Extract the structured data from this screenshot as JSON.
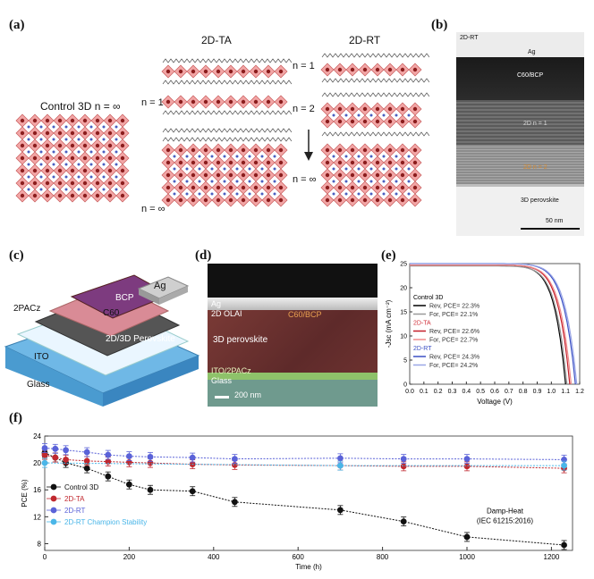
{
  "panel_labels": {
    "a": "(a)",
    "b": "(b)",
    "c": "(c)",
    "d": "(d)",
    "e": "(e)",
    "f": "(f)"
  },
  "panel_a": {
    "control_title": "Control 3D n = ∞",
    "ta_title": "2D-TA",
    "rt_title": "2D-RT",
    "ta_n1": "n = 1",
    "ta_ninf": "n = ∞",
    "rt_n1": "n = 1",
    "rt_n2": "n = 2",
    "rt_ninf": "n = ∞"
  },
  "panel_b": {
    "corner": "2D-RT",
    "ag": "Ag",
    "c60bcp": "C60/BCP",
    "n1": "2D n = 1",
    "n2": "2D n = 2",
    "perov": "3D perovskite",
    "scale": "50 nm"
  },
  "panel_c": {
    "ag": "Ag",
    "bcp": "BCP",
    "c60": "C60",
    "twopacz": "2PACz",
    "perov": "2D/3D Perovskite",
    "ito": "ITO",
    "glass": "Glass"
  },
  "panel_d": {
    "ag": "Ag",
    "oi": "2D OLAI",
    "c60bcp": "C60/BCP",
    "perov": "3D perovskite",
    "ito": "ITO/2PACz",
    "glass": "Glass",
    "scale": "200 nm"
  },
  "panel_e": {
    "ylabel": "-Jsc (mA cm⁻²)",
    "xlabel": "Voltage (V)",
    "legend": [
      {
        "text": "Control 3D",
        "color": "#000000",
        "kind": "header"
      },
      {
        "text": "Rev, PCE= 22.3%",
        "color": "#000000",
        "kind": "line"
      },
      {
        "text": "For, PCE= 22.1%",
        "color": "#999999",
        "kind": "line"
      },
      {
        "text": "2D-TA",
        "color": "#d0313b",
        "kind": "header"
      },
      {
        "text": "Rev, PCE= 22.6%",
        "color": "#c41e2a",
        "kind": "line"
      },
      {
        "text": "For, PCE= 22.7%",
        "color": "#f08a8a",
        "kind": "line"
      },
      {
        "text": "2D-RT",
        "color": "#3a4fc4",
        "kind": "header"
      },
      {
        "text": "Rev, PCE= 24.3%",
        "color": "#3a4fc4",
        "kind": "line"
      },
      {
        "text": "For, PCE= 24.2%",
        "color": "#9aa6e6",
        "kind": "line"
      }
    ]
  },
  "chart_data": [
    {
      "type": "line",
      "panel": "e",
      "xlabel": "Voltage (V)",
      "ylabel": "-Jsc (mA cm⁻²)",
      "xlim": [
        0,
        1.2
      ],
      "ylim": [
        0,
        25
      ],
      "xticks": [
        "0.0",
        "0.1",
        "0.2",
        "0.3",
        "0.4",
        "0.5",
        "0.6",
        "0.7",
        "0.8",
        "0.9",
        "1.0",
        "1.1",
        "1.2"
      ],
      "yticks": [
        "0",
        "5",
        "10",
        "15",
        "20",
        "25"
      ],
      "series": [
        {
          "name": "Control 3D Rev",
          "color": "#000000",
          "jsc": 24.6,
          "voc": 1.1
        },
        {
          "name": "Control 3D For",
          "color": "#999999",
          "jsc": 24.5,
          "voc": 1.11
        },
        {
          "name": "2D-TA Rev",
          "color": "#c41e2a",
          "jsc": 24.7,
          "voc": 1.13
        },
        {
          "name": "2D-TA For",
          "color": "#f08a8a",
          "jsc": 24.7,
          "voc": 1.14
        },
        {
          "name": "2D-RT Rev",
          "color": "#3a4fc4",
          "jsc": 25.0,
          "voc": 1.17
        },
        {
          "name": "2D-RT For",
          "color": "#9aa6e6",
          "jsc": 25.0,
          "voc": 1.18
        }
      ]
    },
    {
      "type": "line",
      "panel": "f",
      "xlabel": "Time (h)",
      "ylabel": "PCE (%)",
      "xlim": [
        0,
        1250
      ],
      "ylim": [
        7,
        24
      ],
      "xticks": [
        "0",
        "200",
        "400",
        "600",
        "800",
        "1000",
        "1200"
      ],
      "yticks": [
        "8",
        "12",
        "16",
        "20",
        "24"
      ],
      "annotation": [
        "Damp-Heat",
        "(IEC 61215:2016)"
      ],
      "series": [
        {
          "name": "Control 3D",
          "color": "#111111",
          "x": [
            0,
            25,
            50,
            100,
            150,
            200,
            250,
            350,
            450,
            700,
            850,
            1000,
            1230
          ],
          "y": [
            21.5,
            20.8,
            20.0,
            19.2,
            18.0,
            16.8,
            16.0,
            15.8,
            14.2,
            13.0,
            11.3,
            9.0,
            7.8
          ]
        },
        {
          "name": "2D-TA",
          "color": "#c0282f",
          "x": [
            0,
            25,
            50,
            100,
            150,
            200,
            250,
            350,
            450,
            700,
            850,
            1000,
            1230
          ],
          "y": [
            21.2,
            20.8,
            20.5,
            20.3,
            20.2,
            20.1,
            20.0,
            19.8,
            19.7,
            19.6,
            19.5,
            19.5,
            19.2
          ]
        },
        {
          "name": "2D-RT",
          "color": "#5a62d8",
          "x": [
            0,
            25,
            50,
            100,
            150,
            200,
            250,
            350,
            450,
            700,
            850,
            1000,
            1230
          ],
          "y": [
            22.2,
            22.1,
            21.9,
            21.6,
            21.2,
            21.0,
            20.9,
            20.8,
            20.6,
            20.7,
            20.6,
            20.6,
            20.5
          ]
        },
        {
          "name": "2D-RT Champion Stability",
          "color": "#4ab6e8",
          "x": [
            0,
            700,
            1230
          ],
          "y": [
            20.0,
            19.6,
            19.6
          ]
        }
      ]
    }
  ]
}
